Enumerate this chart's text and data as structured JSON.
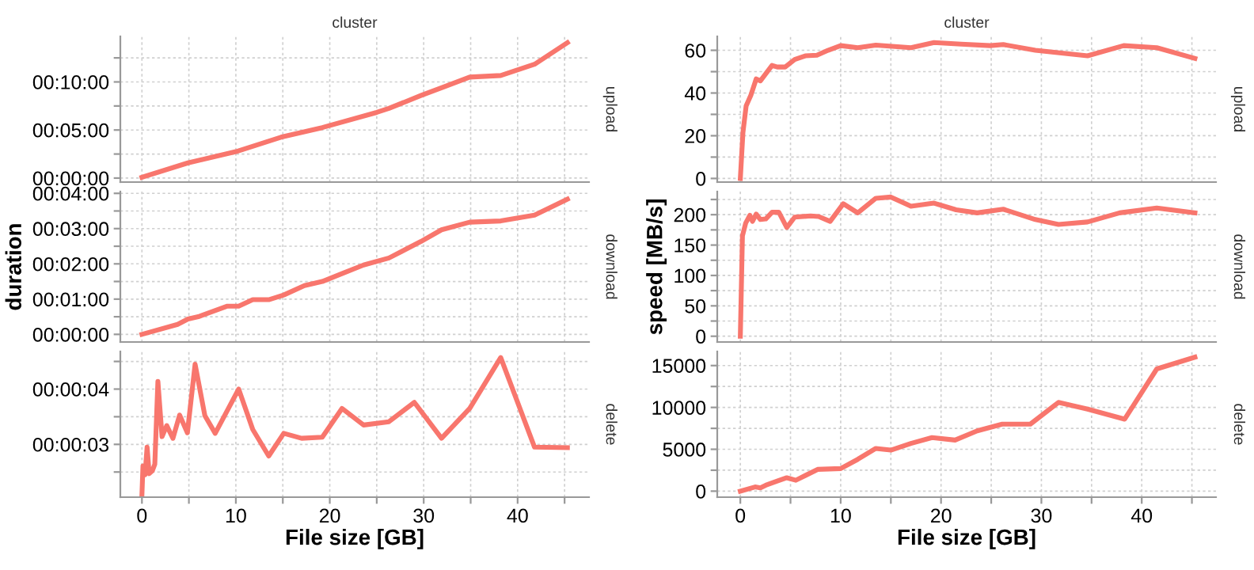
{
  "chart_data": [
    {
      "type": "line",
      "title": "cluster",
      "annotations": [
        "upload"
      ],
      "tick_labels": "y",
      "grid": true,
      "line_style": "solid",
      "xlim": [
        -2.3,
        47.6
      ],
      "xticks": [
        {
          "value": 0,
          "label": null
        },
        {
          "value": 5,
          "label": null
        },
        {
          "value": 10,
          "label": null
        },
        {
          "value": 15,
          "label": null
        },
        {
          "value": 20,
          "label": null
        },
        {
          "value": 25,
          "label": null
        },
        {
          "value": 30,
          "label": null
        },
        {
          "value": 35,
          "label": null
        },
        {
          "value": 40,
          "label": null
        },
        {
          "value": 45,
          "label": null
        }
      ],
      "ylim": [
        -25,
        884
      ],
      "yticks": [
        {
          "value": 0,
          "label": "00:00:00"
        },
        {
          "value": 150,
          "label": null
        },
        {
          "value": 300,
          "label": "00:05:00"
        },
        {
          "value": 450,
          "label": null
        },
        {
          "value": 600,
          "label": "00:10:00"
        },
        {
          "value": 750,
          "label": null
        }
      ],
      "series": [
        {
          "color": "#f8766d",
          "x": [
            0,
            4.9,
            10,
            14.8,
            19.2,
            25,
            26.3,
            29.7,
            32.4,
            34.9,
            38.2,
            41.8,
            45.3
          ],
          "values": [
            5,
            95,
            165,
            255,
            315,
            410,
            435,
            515,
            575,
            630,
            640,
            710,
            845
          ]
        }
      ]
    },
    {
      "type": "line",
      "title": "cluster",
      "annotations": [
        "upload"
      ],
      "tick_labels": "y",
      "grid": true,
      "line_style": "solid",
      "xlim": [
        -2.3,
        47.4
      ],
      "xticks": [
        {
          "value": 0,
          "label": null
        },
        {
          "value": 5,
          "label": null
        },
        {
          "value": 10,
          "label": null
        },
        {
          "value": 15,
          "label": null
        },
        {
          "value": 20,
          "label": null
        },
        {
          "value": 25,
          "label": null
        },
        {
          "value": 30,
          "label": null
        },
        {
          "value": 35,
          "label": null
        },
        {
          "value": 40,
          "label": null
        },
        {
          "value": 45,
          "label": null
        }
      ],
      "ylim": [
        -1.7,
        66.5
      ],
      "yticks": [
        0,
        {
          "value": 10,
          "label": null
        },
        20,
        {
          "value": 30,
          "label": null
        },
        40,
        {
          "value": 50,
          "label": null
        },
        60
      ],
      "series": [
        {
          "color": "#f8766d",
          "x": [
            0,
            0.26,
            0.58,
            1.05,
            1.58,
            2.0,
            3.16,
            3.68,
            4.47,
            5.42,
            6.47,
            7.63,
            8.74,
            10.0,
            11.7,
            13.5,
            17.0,
            19.3,
            22.0,
            24.9,
            26.2,
            29.4,
            34.6,
            38.2,
            41.5,
            45.3
          ],
          "values": [
            0,
            21.5,
            34,
            39,
            46.6,
            45.7,
            52.9,
            52.2,
            52.2,
            55.7,
            57.4,
            57.7,
            60,
            62.2,
            61.2,
            62.4,
            61.2,
            63.6,
            62.9,
            62.2,
            62.7,
            60,
            57.4,
            62.2,
            61.2,
            56.2
          ]
        }
      ]
    },
    {
      "type": "line",
      "ylabel": "duration",
      "annotations": [
        "download"
      ],
      "tick_labels": "y",
      "grid": true,
      "line_style": "solid",
      "xlim": [
        -2.3,
        47.6
      ],
      "xticks": [
        {
          "value": 0,
          "label": null
        },
        {
          "value": 5,
          "label": null
        },
        {
          "value": 10,
          "label": null
        },
        {
          "value": 15,
          "label": null
        },
        {
          "value": 20,
          "label": null
        },
        {
          "value": 25,
          "label": null
        },
        {
          "value": 30,
          "label": null
        },
        {
          "value": 35,
          "label": null
        },
        {
          "value": 40,
          "label": null
        },
        {
          "value": 45,
          "label": null
        }
      ],
      "ylim": [
        -13,
        243
      ],
      "yticks": [
        {
          "value": 0,
          "label": "00:00:00"
        },
        {
          "value": 30,
          "label": null
        },
        {
          "value": 60,
          "label": "00:01:00"
        },
        {
          "value": 90,
          "label": null
        },
        {
          "value": 120,
          "label": "00:02:00"
        },
        {
          "value": 150,
          "label": null
        },
        {
          "value": 180,
          "label": "00:03:00"
        },
        {
          "value": 210,
          "label": null
        },
        {
          "value": 240,
          "label": "00:04:00"
        }
      ],
      "series": [
        {
          "color": "#f8766d",
          "x": [
            0,
            3.8,
            4.9,
            6.0,
            9.1,
            10.3,
            11.8,
            13.5,
            15.1,
            17.3,
            19.2,
            21.4,
            23.6,
            26.3,
            29.7,
            31.9,
            34.9,
            38.2,
            41.8,
            45.3
          ],
          "values": [
            0,
            17,
            26,
            30,
            48,
            48,
            59,
            59,
            67,
            83,
            90,
            104,
            118,
            130,
            158,
            178,
            191,
            193,
            203,
            230
          ]
        }
      ]
    },
    {
      "type": "line",
      "ylabel": "speed [MB/s]",
      "annotations": [
        "download"
      ],
      "tick_labels": "y",
      "grid": true,
      "line_style": "solid",
      "xlim": [
        -2.3,
        47.4
      ],
      "xticks": [
        {
          "value": 0,
          "label": null
        },
        {
          "value": 5,
          "label": null
        },
        {
          "value": 10,
          "label": null
        },
        {
          "value": 15,
          "label": null
        },
        {
          "value": 20,
          "label": null
        },
        {
          "value": 25,
          "label": null
        },
        {
          "value": 30,
          "label": null
        },
        {
          "value": 35,
          "label": null
        },
        {
          "value": 40,
          "label": null
        },
        {
          "value": 45,
          "label": null
        }
      ],
      "ylim": [
        -9.5,
        238
      ],
      "yticks": [
        0,
        {
          "value": 25,
          "label": null
        },
        50,
        {
          "value": 75,
          "label": null
        },
        100,
        {
          "value": 125,
          "label": null
        },
        150,
        {
          "value": 175,
          "label": null
        },
        200,
        {
          "value": 225,
          "label": null
        }
      ],
      "series": [
        {
          "color": "#f8766d",
          "x": [
            0,
            0.21,
            0.53,
            0.95,
            1.21,
            1.58,
            2.0,
            2.53,
            3.16,
            3.84,
            4.63,
            5.42,
            7.0,
            7.8,
            8.95,
            10.26,
            11.7,
            13.5,
            15.0,
            17.0,
            19.3,
            21.5,
            23.6,
            26.2,
            29.4,
            31.7,
            34.6,
            37.8,
            41.5,
            45.3
          ],
          "values": [
            0,
            165,
            186,
            199,
            189,
            201,
            192,
            193,
            204,
            204,
            179,
            196,
            198,
            197,
            189,
            218,
            203,
            227,
            229,
            214,
            219,
            208,
            203,
            209,
            192,
            184,
            188,
            203,
            211,
            203
          ]
        }
      ]
    },
    {
      "type": "line",
      "xlabel": "File size [GB]",
      "annotations": [
        "delete"
      ],
      "grid": true,
      "line_style": "solid",
      "xlim": [
        -2.3,
        47.6
      ],
      "xticks": [
        0,
        {
          "value": 5,
          "label": null
        },
        10,
        {
          "value": 15,
          "label": null
        },
        20,
        {
          "value": 25,
          "label": null
        },
        30,
        {
          "value": 35,
          "label": null
        },
        40,
        {
          "value": 45,
          "label": null
        }
      ],
      "ylim": [
        2.045,
        4.68
      ],
      "yticks": [
        {
          "value": 2.5,
          "label": null
        },
        {
          "value": 3,
          "label": "00:00:03"
        },
        {
          "value": 3.5,
          "label": null
        },
        {
          "value": 4,
          "label": "00:00:04"
        },
        {
          "value": 4.5,
          "label": null
        }
      ],
      "series": [
        {
          "color": "#f8766d",
          "x": [
            0,
            0.11,
            0.33,
            0.55,
            0.77,
            1.1,
            1.37,
            1.7,
            2.14,
            2.64,
            3.3,
            4.01,
            4.84,
            5.66,
            6.7,
            7.8,
            10.3,
            11.8,
            13.5,
            15.1,
            17.0,
            19.2,
            21.3,
            23.6,
            26.3,
            29.0,
            31.9,
            34.9,
            38.2,
            41.8,
            45.3
          ],
          "values": [
            2.09,
            2.61,
            2.45,
            2.95,
            2.47,
            2.52,
            2.64,
            4.14,
            3.14,
            3.34,
            3.11,
            3.53,
            3.21,
            4.45,
            3.52,
            3.2,
            4.0,
            3.27,
            2.79,
            3.2,
            3.11,
            3.13,
            3.65,
            3.35,
            3.41,
            3.76,
            3.11,
            3.65,
            4.57,
            2.95,
            2.94
          ]
        }
      ]
    },
    {
      "type": "line",
      "xlabel": "File size [GB]",
      "annotations": [
        "delete"
      ],
      "grid": true,
      "line_style": "solid",
      "xlim": [
        -2.3,
        47.4
      ],
      "xticks": [
        0,
        {
          "value": 5,
          "label": null
        },
        10,
        {
          "value": 15,
          "label": null
        },
        20,
        {
          "value": 25,
          "label": null
        },
        30,
        {
          "value": 35,
          "label": null
        },
        40,
        {
          "value": 45,
          "label": null
        }
      ],
      "ylim": [
        -720,
        16680
      ],
      "yticks": [
        0,
        {
          "value": 2500,
          "label": null
        },
        5000,
        {
          "value": 7500,
          "label": null
        },
        10000,
        {
          "value": 12500,
          "label": null
        },
        15000
      ],
      "series": [
        {
          "color": "#f8766d",
          "x": [
            0,
            1.47,
            2.0,
            2.53,
            3.68,
            4.63,
            5.53,
            7.7,
            10.0,
            11.7,
            13.5,
            15.0,
            17.0,
            19.1,
            21.4,
            23.6,
            26.1,
            28.9,
            31.7,
            34.6,
            38.3,
            41.5,
            45.3
          ],
          "values": [
            0,
            500,
            400,
            700,
            1200,
            1600,
            1300,
            2600,
            2700,
            3800,
            5100,
            4900,
            5700,
            6400,
            6100,
            7200,
            8000,
            8000,
            10600,
            9800,
            8600,
            14600,
            16000
          ]
        }
      ]
    }
  ]
}
